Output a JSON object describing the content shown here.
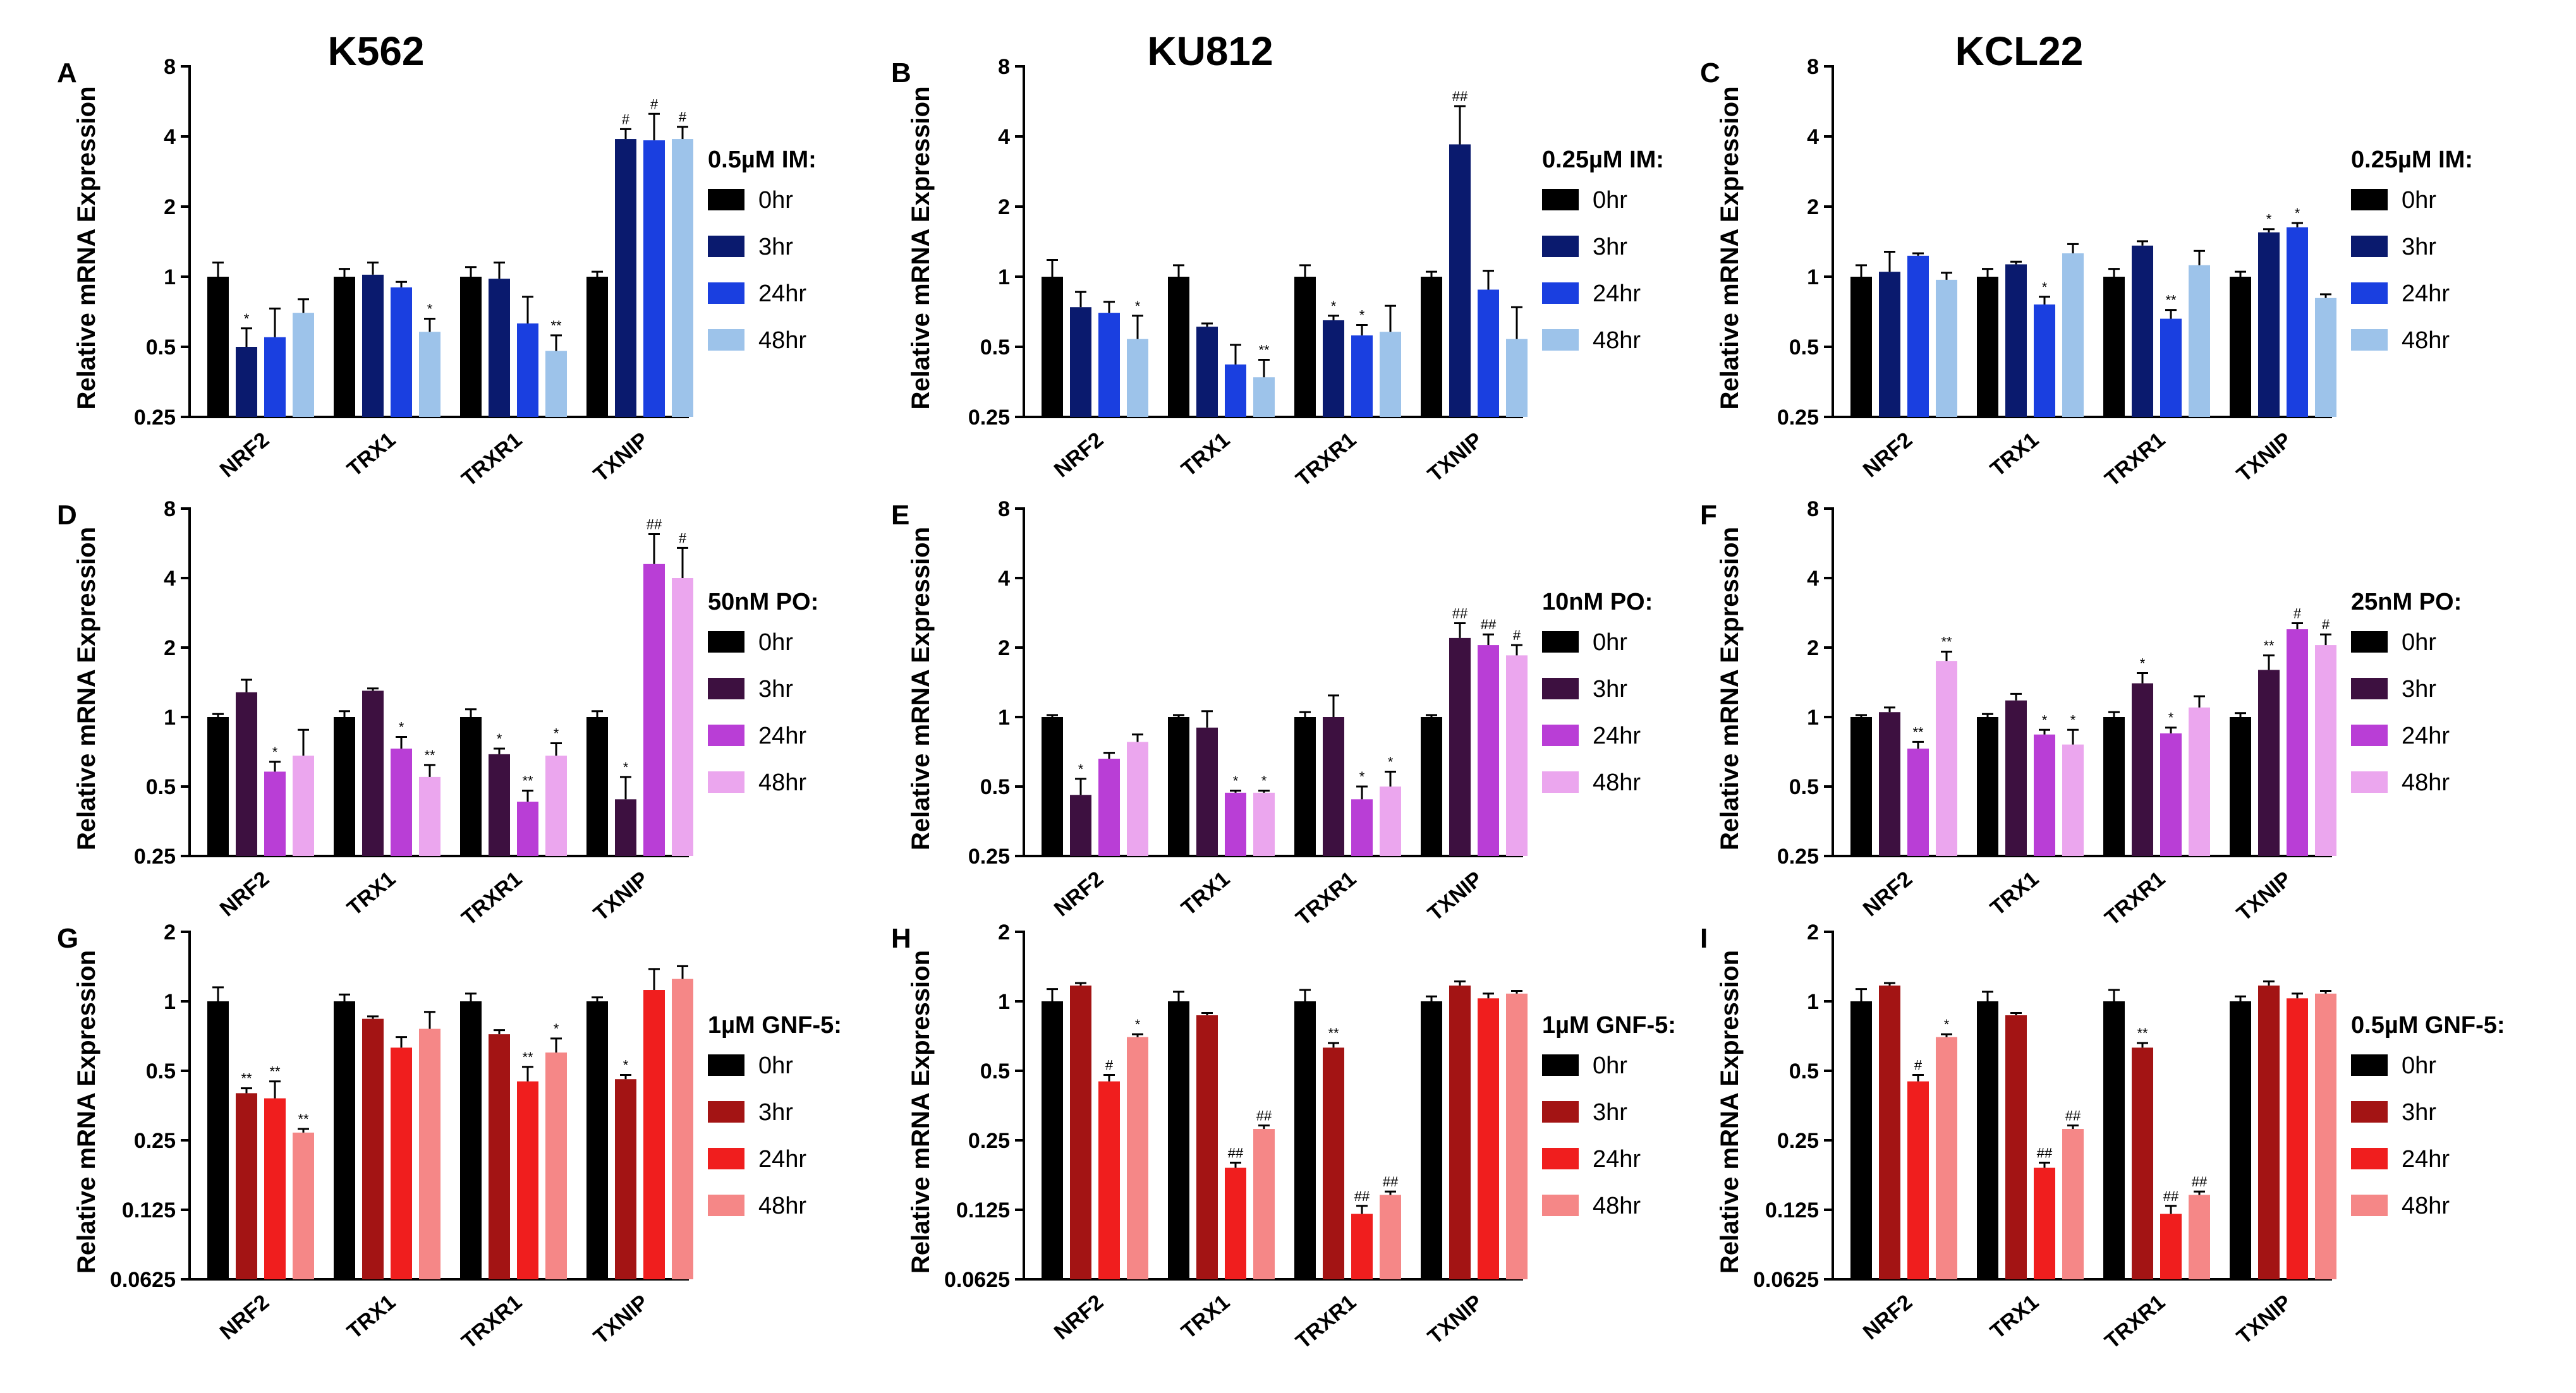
{
  "figure": {
    "ylabel": "Relative mRNA Expression",
    "timepoints": [
      "0hr",
      "3hr",
      "24hr",
      "48hr"
    ],
    "genes": [
      "NRF2",
      "TRX1",
      "TRXR1",
      "TXNIP"
    ]
  },
  "colors": {
    "blue": [
      "#000000",
      "#0a1a6e",
      "#1a3fe0",
      "#9dc3ea"
    ],
    "purple": [
      "#000000",
      "#3d1040",
      "#b93ed6",
      "#eba6ee"
    ],
    "red": [
      "#000000",
      "#a31414",
      "#f01e1e",
      "#f58787"
    ]
  },
  "chart_data": [
    {
      "letter": "A",
      "title": "K562",
      "type": "bar",
      "scale": "log2",
      "palette": "blue",
      "legend_title": "0.5µM  IM:",
      "yticks": [
        "0.25",
        "0.5",
        "1",
        "2",
        "4",
        "8"
      ],
      "ylim": [
        0.25,
        8
      ],
      "categories": [
        "NRF2",
        "TRX1",
        "TRXR1",
        "TXNIP"
      ],
      "series": [
        {
          "name": "0hr",
          "values": [
            1.0,
            1.0,
            1.0,
            1.0
          ],
          "errors": [
            1.15,
            1.08,
            1.1,
            1.05
          ],
          "sig": [
            "",
            "",
            "",
            ""
          ]
        },
        {
          "name": "3hr",
          "values": [
            0.5,
            1.02,
            0.98,
            3.9
          ],
          "errors": [
            0.6,
            1.15,
            1.15,
            4.3
          ],
          "sig": [
            "*",
            "",
            "",
            "#"
          ]
        },
        {
          "name": "24hr",
          "values": [
            0.55,
            0.9,
            0.63,
            3.85
          ],
          "errors": [
            0.73,
            0.95,
            0.82,
            5.0
          ],
          "sig": [
            "",
            "",
            "",
            "#"
          ]
        },
        {
          "name": "48hr",
          "values": [
            0.7,
            0.58,
            0.48,
            3.9
          ],
          "errors": [
            0.8,
            0.66,
            0.56,
            4.4
          ],
          "sig": [
            "",
            "*",
            "**",
            "#"
          ]
        }
      ]
    },
    {
      "letter": "B",
      "title": "KU812",
      "type": "bar",
      "scale": "log2",
      "palette": "blue",
      "legend_title": "0.25µM IM:",
      "yticks": [
        "0.25",
        "0.5",
        "1",
        "2",
        "4",
        "8"
      ],
      "ylim": [
        0.25,
        8
      ],
      "categories": [
        "NRF2",
        "TRX1",
        "TRXR1",
        "TXNIP"
      ],
      "series": [
        {
          "name": "0hr",
          "values": [
            1.0,
            1.0,
            1.0,
            1.0
          ],
          "errors": [
            1.18,
            1.12,
            1.12,
            1.05
          ],
          "sig": [
            "",
            "",
            "",
            ""
          ]
        },
        {
          "name": "3hr",
          "values": [
            0.74,
            0.61,
            0.65,
            3.7
          ],
          "errors": [
            0.86,
            0.63,
            0.68,
            5.4
          ],
          "sig": [
            "",
            "",
            "*",
            "##"
          ]
        },
        {
          "name": "24hr",
          "values": [
            0.7,
            0.42,
            0.56,
            0.88
          ],
          "errors": [
            0.78,
            0.51,
            0.62,
            1.06
          ],
          "sig": [
            "",
            "",
            "*",
            ""
          ]
        },
        {
          "name": "48hr",
          "values": [
            0.54,
            0.37,
            0.58,
            0.54
          ],
          "errors": [
            0.68,
            0.44,
            0.75,
            0.74
          ],
          "sig": [
            "*",
            "**",
            "",
            ""
          ]
        }
      ]
    },
    {
      "letter": "C",
      "title": "KCL22",
      "type": "bar",
      "scale": "log2",
      "palette": "blue",
      "legend_title": "0.25µM IM:",
      "yticks": [
        "0.25",
        "0.5",
        "1",
        "2",
        "4",
        "8"
      ],
      "ylim": [
        0.25,
        8
      ],
      "categories": [
        "NRF2",
        "TRX1",
        "TRXR1",
        "TXNIP"
      ],
      "series": [
        {
          "name": "0hr",
          "values": [
            1.0,
            1.0,
            1.0,
            1.0
          ],
          "errors": [
            1.12,
            1.08,
            1.08,
            1.05
          ],
          "sig": [
            "",
            "",
            "",
            ""
          ]
        },
        {
          "name": "3hr",
          "values": [
            1.05,
            1.13,
            1.36,
            1.55
          ],
          "errors": [
            1.28,
            1.16,
            1.42,
            1.6
          ],
          "sig": [
            "",
            "",
            "",
            "*"
          ]
        },
        {
          "name": "24hr",
          "values": [
            1.23,
            0.76,
            0.66,
            1.63
          ],
          "errors": [
            1.26,
            0.82,
            0.72,
            1.7
          ],
          "sig": [
            "",
            "*",
            "**",
            "*"
          ]
        },
        {
          "name": "48hr",
          "values": [
            0.97,
            1.26,
            1.12,
            0.81
          ],
          "errors": [
            1.04,
            1.38,
            1.29,
            0.84
          ],
          "sig": [
            "",
            "",
            "",
            ""
          ]
        }
      ]
    },
    {
      "letter": "D",
      "title": "",
      "type": "bar",
      "scale": "log2",
      "palette": "purple",
      "legend_title": "50nM PO:",
      "yticks": [
        "0.25",
        "0.5",
        "1",
        "2",
        "4",
        "8"
      ],
      "ylim": [
        0.25,
        8
      ],
      "categories": [
        "NRF2",
        "TRX1",
        "TRXR1",
        "TXNIP"
      ],
      "series": [
        {
          "name": "0hr",
          "values": [
            1.0,
            1.0,
            1.0,
            1.0
          ],
          "errors": [
            1.03,
            1.06,
            1.08,
            1.06
          ],
          "sig": [
            "",
            "",
            "",
            ""
          ]
        },
        {
          "name": "3hr",
          "values": [
            1.28,
            1.3,
            0.69,
            0.44
          ],
          "errors": [
            1.45,
            1.33,
            0.73,
            0.55
          ],
          "sig": [
            "",
            "",
            "*",
            "*"
          ]
        },
        {
          "name": "24hr",
          "values": [
            0.58,
            0.73,
            0.43,
            4.6
          ],
          "errors": [
            0.64,
            0.82,
            0.48,
            6.2
          ],
          "sig": [
            "*",
            "*",
            "**",
            "##"
          ]
        },
        {
          "name": "48hr",
          "values": [
            0.68,
            0.55,
            0.68,
            4.0
          ],
          "errors": [
            0.88,
            0.62,
            0.77,
            5.4
          ],
          "sig": [
            "",
            "**",
            "*",
            "#"
          ]
        }
      ]
    },
    {
      "letter": "E",
      "title": "",
      "type": "bar",
      "scale": "log2",
      "palette": "purple",
      "legend_title": "10nM  PO:",
      "yticks": [
        "0.25",
        "0.5",
        "1",
        "2",
        "4",
        "8"
      ],
      "ylim": [
        0.25,
        8
      ],
      "categories": [
        "NRF2",
        "TRX1",
        "TRXR1",
        "TXNIP"
      ],
      "series": [
        {
          "name": "0hr",
          "values": [
            1.0,
            1.0,
            1.0,
            1.0
          ],
          "errors": [
            1.02,
            1.02,
            1.05,
            1.02
          ],
          "sig": [
            "",
            "",
            "",
            ""
          ]
        },
        {
          "name": "3hr",
          "values": [
            0.46,
            0.9,
            1.0,
            2.2
          ],
          "errors": [
            0.54,
            1.06,
            1.24,
            2.55
          ],
          "sig": [
            "*",
            "",
            "",
            "##"
          ]
        },
        {
          "name": "24hr",
          "values": [
            0.66,
            0.47,
            0.44,
            2.05
          ],
          "errors": [
            0.7,
            0.48,
            0.5,
            2.28
          ],
          "sig": [
            "",
            "*",
            "*",
            "##"
          ]
        },
        {
          "name": "48hr",
          "values": [
            0.78,
            0.47,
            0.5,
            1.85
          ],
          "errors": [
            0.84,
            0.48,
            0.58,
            2.05
          ],
          "sig": [
            "",
            "*",
            "*",
            "#"
          ]
        }
      ]
    },
    {
      "letter": "F",
      "title": "",
      "type": "bar",
      "scale": "log2",
      "palette": "purple",
      "legend_title": "25nM PO:",
      "yticks": [
        "0.25",
        "0.5",
        "1",
        "2",
        "4",
        "8"
      ],
      "ylim": [
        0.25,
        8
      ],
      "categories": [
        "NRF2",
        "TRX1",
        "TRXR1",
        "TXNIP"
      ],
      "series": [
        {
          "name": "0hr",
          "values": [
            1.0,
            1.0,
            1.0,
            1.0
          ],
          "errors": [
            1.02,
            1.03,
            1.05,
            1.04
          ],
          "sig": [
            "",
            "",
            "",
            ""
          ]
        },
        {
          "name": "3hr",
          "values": [
            1.05,
            1.18,
            1.4,
            1.6
          ],
          "errors": [
            1.1,
            1.26,
            1.55,
            1.85
          ],
          "sig": [
            "",
            "",
            "*",
            "**"
          ]
        },
        {
          "name": "24hr",
          "values": [
            0.73,
            0.84,
            0.85,
            2.4
          ],
          "errors": [
            0.78,
            0.88,
            0.9,
            2.55
          ],
          "sig": [
            "**",
            "*",
            "*",
            "#"
          ]
        },
        {
          "name": "48hr",
          "values": [
            1.75,
            0.76,
            1.1,
            2.05
          ],
          "errors": [
            1.92,
            0.88,
            1.23,
            2.28
          ],
          "sig": [
            "**",
            "*",
            "",
            "#"
          ]
        }
      ]
    },
    {
      "letter": "G",
      "title": "",
      "type": "bar",
      "scale": "log2",
      "palette": "red",
      "legend_title": "1µM GNF-5:",
      "yticks": [
        "0.0625",
        "0.125",
        "0.25",
        "0.5",
        "1",
        "2"
      ],
      "ylim": [
        0.0625,
        2
      ],
      "categories": [
        "NRF2",
        "TRX1",
        "TRXR1",
        "TXNIP"
      ],
      "series": [
        {
          "name": "0hr",
          "values": [
            1.0,
            1.0,
            1.0,
            1.0
          ],
          "errors": [
            1.15,
            1.07,
            1.08,
            1.04
          ],
          "sig": [
            "",
            "",
            "",
            ""
          ]
        },
        {
          "name": "3hr",
          "values": [
            0.4,
            0.84,
            0.72,
            0.46
          ],
          "errors": [
            0.42,
            0.86,
            0.75,
            0.48
          ],
          "sig": [
            "**",
            "",
            "",
            "*"
          ]
        },
        {
          "name": "24hr",
          "values": [
            0.38,
            0.63,
            0.45,
            1.12
          ],
          "errors": [
            0.45,
            0.7,
            0.52,
            1.38
          ],
          "sig": [
            "**",
            "",
            "**",
            ""
          ]
        },
        {
          "name": "48hr",
          "values": [
            0.27,
            0.76,
            0.6,
            1.25
          ],
          "errors": [
            0.28,
            0.9,
            0.69,
            1.42
          ],
          "sig": [
            "**",
            "",
            "*",
            ""
          ]
        }
      ]
    },
    {
      "letter": "H",
      "title": "",
      "type": "bar",
      "scale": "log2",
      "palette": "red",
      "legend_title": "1µM GNF-5:",
      "yticks": [
        "0.0625",
        "0.125",
        "0.25",
        "0.5",
        "1",
        "2"
      ],
      "ylim": [
        0.0625,
        2
      ],
      "categories": [
        "NRF2",
        "TRX1",
        "TRXR1",
        "TXNIP"
      ],
      "series": [
        {
          "name": "0hr",
          "values": [
            1.0,
            1.0,
            1.0,
            1.0
          ],
          "errors": [
            1.13,
            1.1,
            1.12,
            1.05
          ],
          "sig": [
            "",
            "",
            "",
            ""
          ]
        },
        {
          "name": "3hr",
          "values": [
            1.17,
            0.87,
            0.63,
            1.17
          ],
          "errors": [
            1.2,
            0.89,
            0.66,
            1.22
          ],
          "sig": [
            "",
            "",
            "**",
            ""
          ]
        },
        {
          "name": "24hr",
          "values": [
            0.45,
            0.19,
            0.12,
            1.03
          ],
          "errors": [
            0.48,
            0.2,
            0.13,
            1.08
          ],
          "sig": [
            "#",
            "##",
            "##",
            ""
          ]
        },
        {
          "name": "48hr",
          "values": [
            0.7,
            0.28,
            0.145,
            1.08
          ],
          "errors": [
            0.72,
            0.29,
            0.15,
            1.11
          ],
          "sig": [
            "*",
            "##",
            "##",
            ""
          ]
        }
      ]
    },
    {
      "letter": "I",
      "title": "",
      "type": "bar",
      "scale": "log2",
      "palette": "red",
      "legend_title": "0.5µM GNF-5:",
      "yticks": [
        "0.0625",
        "0.125",
        "0.25",
        "0.5",
        "1",
        "2"
      ],
      "ylim": [
        0.0625,
        2
      ],
      "categories": [
        "NRF2",
        "TRX1",
        "TRXR1",
        "TXNIP"
      ],
      "series": [
        {
          "name": "0hr",
          "values": [
            1.0,
            1.0,
            1.0,
            1.0
          ],
          "errors": [
            1.13,
            1.1,
            1.12,
            1.05
          ],
          "sig": [
            "",
            "",
            "",
            ""
          ]
        },
        {
          "name": "3hr",
          "values": [
            1.17,
            0.87,
            0.63,
            1.17
          ],
          "errors": [
            1.2,
            0.89,
            0.66,
            1.22
          ],
          "sig": [
            "",
            "",
            "**",
            ""
          ]
        },
        {
          "name": "24hr",
          "values": [
            0.45,
            0.19,
            0.12,
            1.03
          ],
          "errors": [
            0.48,
            0.2,
            0.13,
            1.08
          ],
          "sig": [
            "#",
            "##",
            "##",
            ""
          ]
        },
        {
          "name": "48hr",
          "values": [
            0.7,
            0.28,
            0.145,
            1.08
          ],
          "errors": [
            0.72,
            0.29,
            0.15,
            1.11
          ],
          "sig": [
            "*",
            "##",
            "##",
            ""
          ]
        }
      ]
    }
  ]
}
